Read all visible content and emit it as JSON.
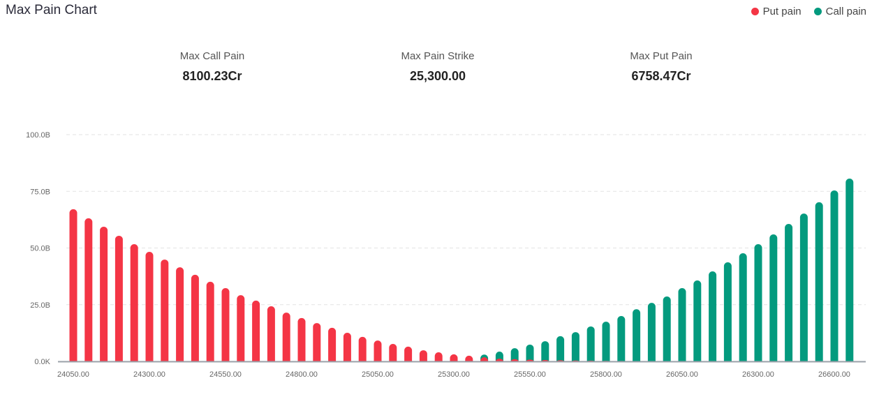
{
  "header": {
    "title": "Max Pain Chart"
  },
  "legend": [
    {
      "label": "Put pain",
      "color": "#f43545"
    },
    {
      "label": "Call pain",
      "color": "#039a7e"
    }
  ],
  "stats": [
    {
      "label": "Max Call Pain",
      "value": "8100.23Cr"
    },
    {
      "label": "Max Pain Strike",
      "value": "25,300.00"
    },
    {
      "label": "Max Put Pain",
      "value": "6758.47Cr"
    }
  ],
  "chart_data": {
    "type": "bar",
    "title": "",
    "xlabel": "",
    "ylabel": "",
    "ylim": [
      0,
      100
    ],
    "y_unit": "B",
    "y_ticks": [
      "0.0K",
      "25.0B",
      "50.0B",
      "75.0B",
      "100.0B"
    ],
    "grid": true,
    "legend_position": "top-right",
    "x_tick_labels": [
      "24050.00",
      "24300.00",
      "24550.00",
      "24800.00",
      "25050.00",
      "25300.00",
      "25550.00",
      "25800.00",
      "26050.00",
      "26300.00",
      "26600.00"
    ],
    "categories": [
      24050,
      24100,
      24150,
      24200,
      24250,
      24300,
      24350,
      24400,
      24450,
      24500,
      24550,
      24600,
      24650,
      24700,
      24750,
      24800,
      24850,
      24900,
      24950,
      25000,
      25050,
      25100,
      25150,
      25200,
      25250,
      25300,
      25350,
      25400,
      25450,
      25500,
      25550,
      25600,
      25650,
      25700,
      25750,
      25800,
      25850,
      25900,
      25950,
      26000,
      26050,
      26100,
      26150,
      26200,
      26250,
      26300,
      26350,
      26400,
      26450,
      26500,
      26600,
      26700
    ],
    "series": [
      {
        "name": "Put pain",
        "color": "#f43545",
        "values": [
          67.1,
          63.1,
          59.4,
          55.4,
          51.7,
          48.3,
          44.9,
          41.5,
          38.2,
          35.1,
          32.3,
          29.2,
          26.8,
          24.3,
          21.5,
          19.1,
          16.9,
          14.8,
          12.6,
          10.8,
          9.2,
          7.7,
          6.5,
          4.9,
          4.0,
          3.1,
          2.5,
          1.8,
          1.2,
          1.0,
          0.8,
          0.6,
          0.5,
          0.4,
          0.3,
          0.25,
          0.2,
          0.15,
          0.1,
          0.05,
          0.03,
          0,
          0,
          0,
          0,
          0,
          0,
          0,
          0,
          0,
          0,
          0
        ]
      },
      {
        "name": "Call pain",
        "color": "#039a7e",
        "values": [
          0,
          0,
          0,
          0,
          0,
          0,
          0,
          0,
          0,
          0,
          0,
          0,
          0,
          0,
          0,
          0,
          0,
          0,
          0,
          0,
          0.1,
          0.2,
          0.3,
          0.5,
          0.7,
          1.0,
          1.6,
          3.0,
          4.3,
          5.8,
          7.4,
          8.9,
          11.1,
          12.9,
          15.4,
          17.5,
          20.0,
          23.0,
          25.8,
          28.6,
          32.3,
          35.7,
          39.7,
          43.7,
          47.7,
          51.7,
          56.0,
          60.6,
          65.2,
          70.2,
          75.4,
          80.6
        ]
      }
    ]
  }
}
